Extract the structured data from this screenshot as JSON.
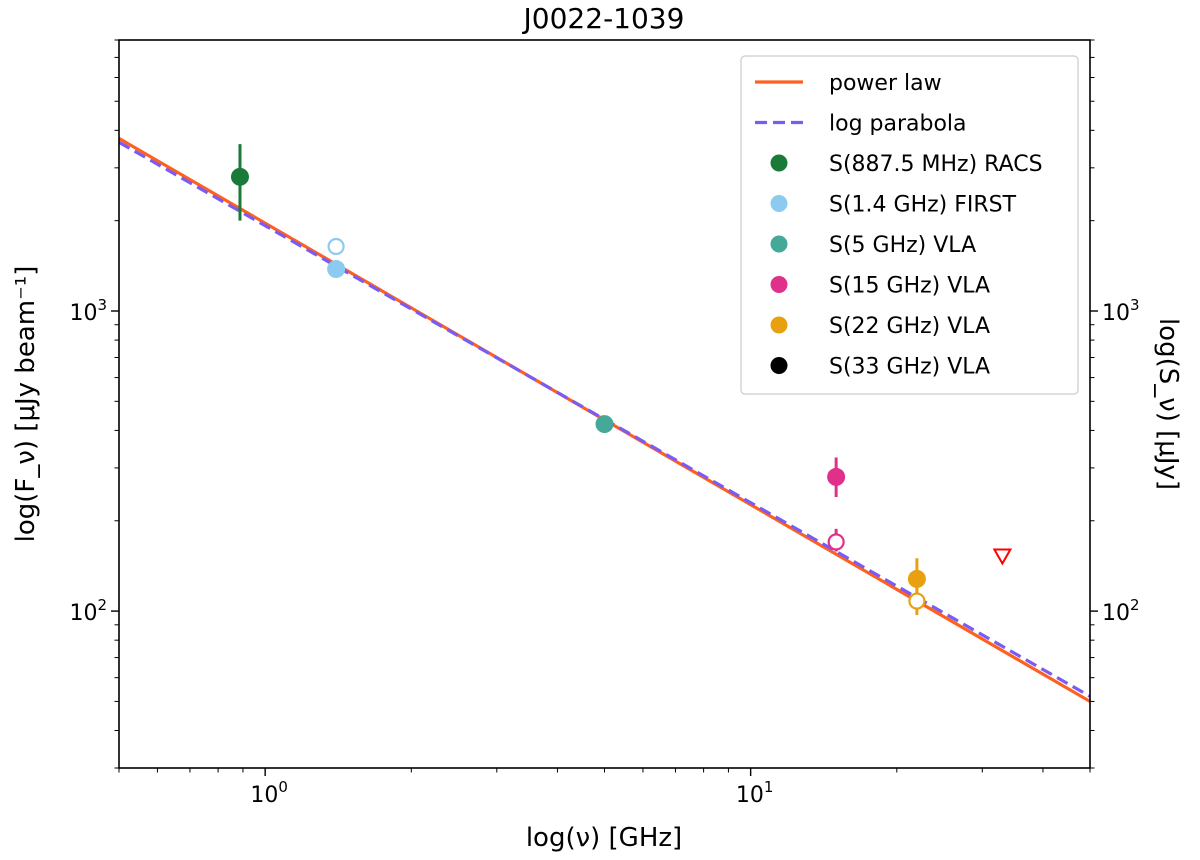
{
  "chart_data": {
    "type": "scatter",
    "title": "J0022-1039",
    "xlabel": "log(ν) [GHz]",
    "ylabel_left": "log(F_ν) [μJy beam⁻¹]",
    "ylabel_right": "log(S_ν) [μJy]",
    "xscale": "log",
    "yscale": "log",
    "xlim": [
      0.5,
      50
    ],
    "ylim": [
      30,
      8000
    ],
    "x_tick_labels": [
      {
        "value": 1,
        "label": "10",
        "exp": "0"
      },
      {
        "value": 10,
        "label": "10",
        "exp": "1"
      }
    ],
    "y_tick_labels": [
      {
        "value": 100,
        "label": "10",
        "exp": "2"
      },
      {
        "value": 1000,
        "label": "10",
        "exp": "3"
      }
    ],
    "grid": false,
    "legend_position": "top-right",
    "lines": [
      {
        "name": "power law",
        "color": "#ff6020",
        "style": "solid",
        "x": [
          0.5,
          50
        ],
        "y": [
          3760,
          50
        ]
      },
      {
        "name": "log parabola",
        "color": "#7b5cf0",
        "style": "dashed",
        "x": [
          0.5,
          50
        ],
        "y": [
          3650,
          52
        ]
      }
    ],
    "series": [
      {
        "name": "S(887.5 MHz) RACS",
        "color": "#1a7a3a",
        "points": [
          {
            "x": 0.8875,
            "y": 2800,
            "yerr_lo": 2000,
            "yerr_hi": 3600,
            "filled": true
          }
        ]
      },
      {
        "name": "S(1.4 GHz) FIRST",
        "color": "#8ccbf0",
        "points": [
          {
            "x": 1.4,
            "y": 1380,
            "filled": true
          },
          {
            "x": 1.4,
            "y": 1640,
            "filled": false
          }
        ]
      },
      {
        "name": "S(5 GHz) VLA",
        "color": "#45a898",
        "points": [
          {
            "x": 5.0,
            "y": 420,
            "filled": true
          }
        ]
      },
      {
        "name": "S(15 GHz) VLA",
        "color": "#e0308a",
        "points": [
          {
            "x": 15.0,
            "y": 280,
            "yerr_lo": 240,
            "yerr_hi": 325,
            "filled": true
          },
          {
            "x": 15.0,
            "y": 170,
            "yerr_lo": 158,
            "yerr_hi": 188,
            "filled": false
          }
        ]
      },
      {
        "name": "S(22 GHz) VLA",
        "color": "#e8a010",
        "points": [
          {
            "x": 22.0,
            "y": 128,
            "yerr_lo": 112,
            "yerr_hi": 150,
            "filled": true
          },
          {
            "x": 22.0,
            "y": 108,
            "yerr_lo": 97,
            "yerr_hi": 120,
            "filled": false
          }
        ]
      },
      {
        "name": "S(33 GHz) VLA",
        "color": "#000000",
        "points": []
      }
    ],
    "upper_limits": [
      {
        "x": 33.0,
        "y": 152,
        "color": "#ff0000",
        "marker": "open-down-triangle"
      }
    ]
  }
}
